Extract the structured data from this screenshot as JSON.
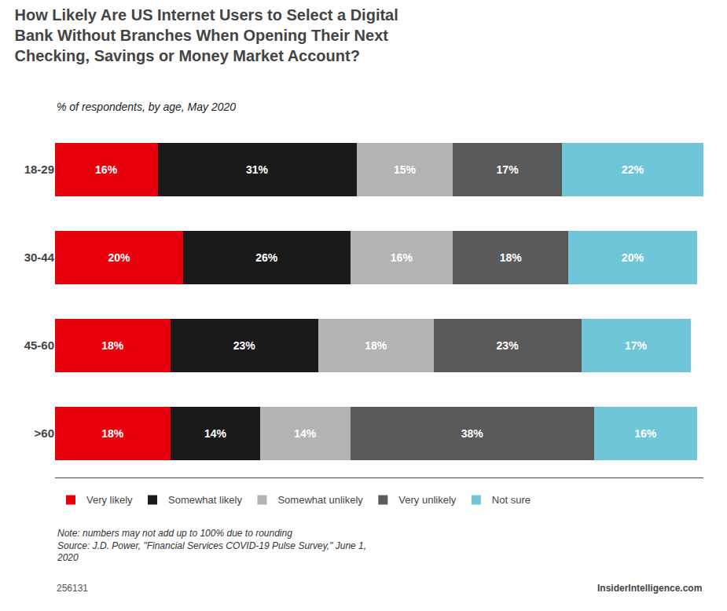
{
  "chart_data": {
    "type": "bar",
    "orientation": "horizontal",
    "stacked": true,
    "title": "How Likely Are US Internet Users to Select a Digital\nBank Without Branches When Opening Their Next\nChecking, Savings or Money Market Account?",
    "subtitle": "% of respondents, by age, May 2020",
    "categories": [
      "18-29",
      "30-44",
      "45-60",
      ">60"
    ],
    "series": [
      {
        "name": "Very likely",
        "color": "#e8000d",
        "values": [
          16,
          20,
          18,
          18
        ],
        "value_labels": [
          "16%",
          "20%",
          "18%",
          "18%"
        ]
      },
      {
        "name": "Somewhat likely",
        "color": "#1a1a1a",
        "values": [
          31,
          26,
          23,
          14
        ],
        "value_labels": [
          "31%",
          "26%",
          "23%",
          "14%"
        ]
      },
      {
        "name": "Somewhat unlikely",
        "color": "#b3b3b3",
        "values": [
          15,
          16,
          18,
          14
        ],
        "value_labels": [
          "15%",
          "16%",
          "18%",
          "14%"
        ]
      },
      {
        "name": "Very unlikely",
        "color": "#5a5a5a",
        "values": [
          17,
          18,
          23,
          38
        ],
        "value_labels": [
          "17%",
          "18%",
          "23%",
          "38%"
        ]
      },
      {
        "name": "Not sure",
        "color": "#6ec6d8",
        "values": [
          22,
          20,
          17,
          16
        ],
        "value_labels": [
          "22%",
          "20%",
          "17%",
          "16%"
        ]
      }
    ],
    "xlim": [
      0,
      101
    ],
    "data_labels": true,
    "tick_labels": "y",
    "grid": false,
    "legend": "bottom",
    "annotations": [
      "Note: numbers may not add up to 100% due to rounding",
      "Source: J.D. Power, \"Financial Services COVID-19 Pulse Survey,\" June 1,\n2020",
      "256131",
      "InsiderIntelligence.com"
    ]
  }
}
